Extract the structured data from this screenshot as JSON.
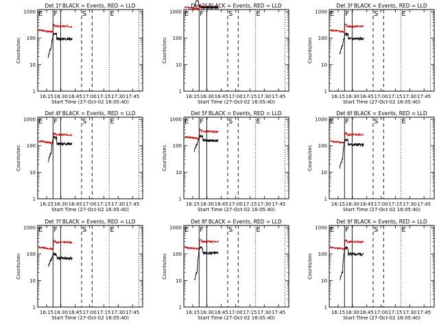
{
  "chart_data": [
    {
      "type": "line",
      "title": "Det 1f BLACK = Events, RED = LLD",
      "start_rate": 20,
      "det": 1
    },
    {
      "type": "line",
      "title": "Det 2f BLACK = Events, RED = LLD",
      "start_rate": 1500,
      "det": 2
    },
    {
      "type": "line",
      "title": "Det 3f BLACK = Events, RED = LLD",
      "start_rate": 25,
      "det": 3
    },
    {
      "type": "line",
      "title": "Det 4f BLACK = Events, RED = LLD",
      "start_rate": 25,
      "det": 4
    },
    {
      "type": "line",
      "title": "Det 5f BLACK = Events, RED = LLD",
      "start_rate": 60,
      "det": 5
    },
    {
      "type": "line",
      "title": "Det 6f BLACK = Events, RED = LLD",
      "start_rate": 15,
      "det": 6
    },
    {
      "type": "line",
      "title": "Det 7f BLACK = Events, RED = LLD",
      "start_rate": 30,
      "det": 7
    },
    {
      "type": "line",
      "title": "Det 8f BLACK = Events, RED = LLD",
      "start_rate": 10,
      "det": 8
    },
    {
      "type": "line",
      "title": "Det 9f BLACK = Events, RED = LLD",
      "start_rate": 10,
      "det": 9
    }
  ],
  "shared": {
    "ylabel": "Counts/sec",
    "xlabel": "Start Time (27-Oct-02 16:05:40)",
    "x_ticks": [
      {
        "label": "16:15",
        "min": 9.33
      },
      {
        "label": "16:30",
        "min": 24.33
      },
      {
        "label": "16:45",
        "min": 39.33
      },
      {
        "label": "17:00",
        "min": 54.33
      },
      {
        "label": "17:15",
        "min": 69.33
      },
      {
        "label": "17:30",
        "min": 84.33
      },
      {
        "label": "17:45",
        "min": 99.33
      }
    ],
    "xlim_minutes": [
      0,
      110
    ],
    "y_ticks": [
      {
        "label": "1",
        "value": 1
      },
      {
        "label": "10",
        "value": 10
      },
      {
        "label": "100",
        "value": 100
      },
      {
        "label": "1000",
        "value": 1000
      }
    ],
    "ylim": [
      1,
      1200
    ],
    "y_scale": "log",
    "markers": [
      {
        "label": "E",
        "min": 0
      },
      {
        "label": "F",
        "min": 16
      },
      {
        "label": "S",
        "min": 46
      },
      {
        "label": "E",
        "min": 75
      }
    ],
    "vlines": [
      {
        "min": 16,
        "style": "solid"
      },
      {
        "min": 24,
        "style": "solid"
      },
      {
        "min": 46,
        "style": "dashed"
      },
      {
        "min": 57,
        "style": "dashed"
      },
      {
        "min": 75,
        "style": "dotted"
      },
      {
        "min": 106,
        "style": "dotted"
      }
    ],
    "series_colors": {
      "events": "#000000",
      "lld": "#cc0000"
    }
  },
  "panel_series": [
    {
      "lld_pre": 200,
      "lld_post": 280,
      "ev_post": 95,
      "ev_peak": 140
    },
    {
      "lld_pre": 1500,
      "lld_post": 1500,
      "ev_post": 1450,
      "ev_peak": 1500
    },
    {
      "lld_pre": 200,
      "lld_post": 280,
      "ev_post": 95,
      "ev_peak": 140
    },
    {
      "lld_pre": 150,
      "lld_post": 260,
      "ev_post": 120,
      "ev_peak": 200
    },
    {
      "lld_pre": 220,
      "lld_post": 350,
      "ev_post": 160,
      "ev_peak": 220
    },
    {
      "lld_pre": 150,
      "lld_post": 260,
      "ev_post": 110,
      "ev_peak": 170
    },
    {
      "lld_pre": 180,
      "lld_post": 280,
      "ev_post": 70,
      "ev_peak": 100
    },
    {
      "lld_pre": 180,
      "lld_post": 300,
      "ev_post": 110,
      "ev_peak": 170
    },
    {
      "lld_pre": 180,
      "lld_post": 290,
      "ev_post": 100,
      "ev_peak": 170
    }
  ]
}
